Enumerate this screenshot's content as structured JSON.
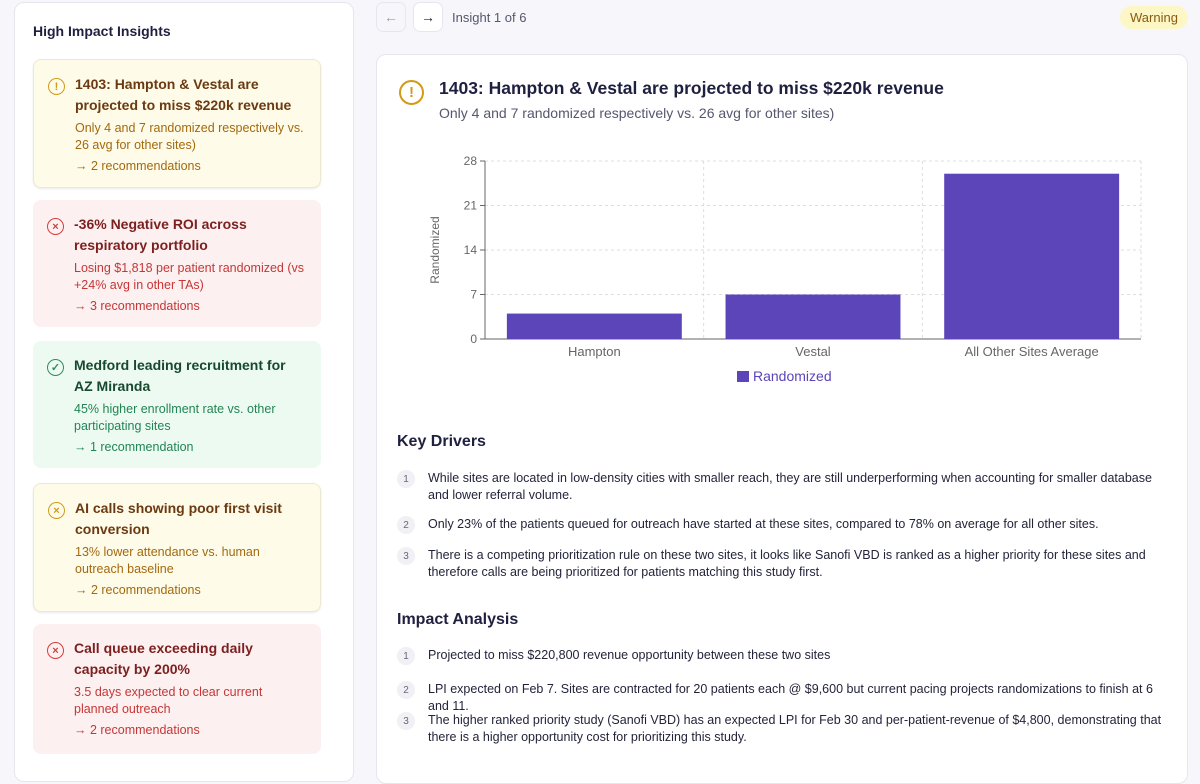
{
  "sidebar": {
    "title": "High Impact Insights",
    "cards": [
      {
        "type": "warning",
        "icon": "alert-circle-icon",
        "title": "1403: Hampton & Vestal are projected to miss $220k revenue",
        "desc": "Only 4 and 7 randomized respectively vs. 26 avg for other sites)",
        "recs": "→ 2 recommendations"
      },
      {
        "type": "error",
        "icon": "x-circle-icon",
        "title": "-36% Negative ROI across respiratory portfolio",
        "desc": "Losing $1,818 per patient randomized (vs +24% avg in other TAs)",
        "recs": "→ 3 recommendations"
      },
      {
        "type": "success",
        "icon": "check-circle-icon",
        "title": "Medford leading recruitment for AZ Miranda",
        "desc": "45% higher enrollment rate vs. other participating sites",
        "recs": "→ 1 recommendation"
      },
      {
        "type": "warning",
        "icon": "x-circle-icon",
        "title": "AI calls showing poor first visit conversion",
        "desc": "13% lower attendance vs. human outreach baseline",
        "recs": "→ 2 recommendations"
      },
      {
        "type": "error",
        "icon": "x-circle-icon",
        "title": "Call queue exceeding daily capacity by 200%",
        "desc": "3.5 days expected to clear current planned outreach",
        "recs": "→ 2 recommendations"
      }
    ]
  },
  "nav": {
    "prev": "←",
    "next": "→",
    "counter": "Insight 1 of 6",
    "badge": "Warning"
  },
  "detail": {
    "title": "1403: Hampton & Vestal are projected to miss $220k revenue",
    "subtitle": "Only 4 and 7 randomized respectively vs. 26 avg for other sites)",
    "key_drivers_title": "Key Drivers",
    "key_drivers": [
      "While sites are located in low-density cities with smaller reach, they are still underperforming when accounting for smaller database and lower referral volume.",
      "Only 23% of the patients queued for outreach have started at these sites, compared to 78% on average for all other sites.",
      "There is a competing prioritization rule on these two sites, it looks like Sanofi VBD is ranked as a higher priority for these sites and therefore calls are being prioritized for patients matching this study first."
    ],
    "impact_title": "Impact Analysis",
    "impact": [
      "Projected to miss $220,800 revenue opportunity between these two sites",
      "LPI expected on Feb 7. Sites are contracted for 20 patients each @ $9,600 but current pacing projects randomizations to finish at 6 and 11.",
      "The higher ranked priority study (Sanofi VBD) has an expected LPI for Feb 30 and per-patient-revenue of $4,800, demonstrating that there is a higher opportunity cost for prioritizing this study."
    ]
  },
  "chart_data": {
    "type": "bar",
    "categories": [
      "Hampton",
      "Vestal",
      "All Other Sites Average"
    ],
    "series": [
      {
        "name": "Randomized",
        "values": [
          4,
          7,
          26
        ]
      }
    ],
    "ylabel": "Randomized",
    "ylim": [
      0,
      28
    ],
    "yticks": [
      0,
      7,
      14,
      21,
      28
    ],
    "grid": true,
    "legend": "bottom",
    "color": "#5b45b8"
  }
}
